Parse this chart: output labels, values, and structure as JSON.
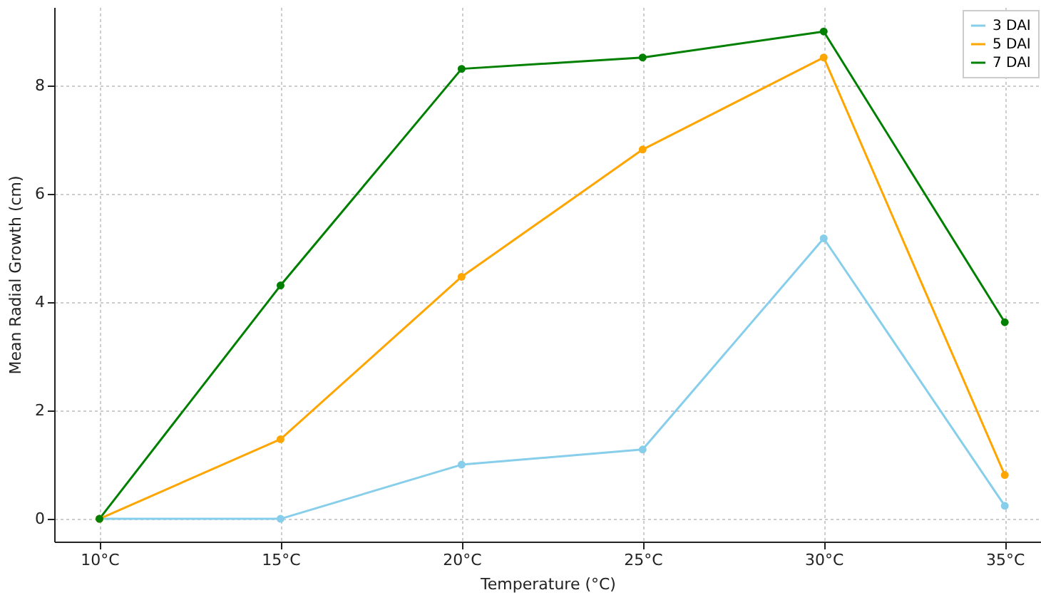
{
  "chart_data": {
    "type": "line",
    "xlabel": "Temperature (°C)",
    "ylabel": "Mean Radial Growth (cm)",
    "categories": [
      "10°C",
      "15°C",
      "20°C",
      "25°C",
      "30°C",
      "35°C"
    ],
    "series": [
      {
        "name": "3 DAI",
        "color": "#87ceeb",
        "values": [
          0,
          0,
          1.0,
          1.28,
          5.18,
          0.24
        ]
      },
      {
        "name": "5 DAI",
        "color": "#ffa500",
        "values": [
          0,
          1.47,
          4.47,
          6.82,
          8.52,
          0.81
        ]
      },
      {
        "name": "7 DAI",
        "color": "#008000",
        "values": [
          0,
          4.31,
          8.31,
          8.52,
          9.0,
          3.63
        ]
      }
    ],
    "ylim": [
      -0.42,
      9.45
    ],
    "yticks": [
      0,
      2,
      4,
      6,
      8
    ],
    "grid": true,
    "legend": "top right",
    "marker": "circle",
    "line_style": "solid"
  }
}
